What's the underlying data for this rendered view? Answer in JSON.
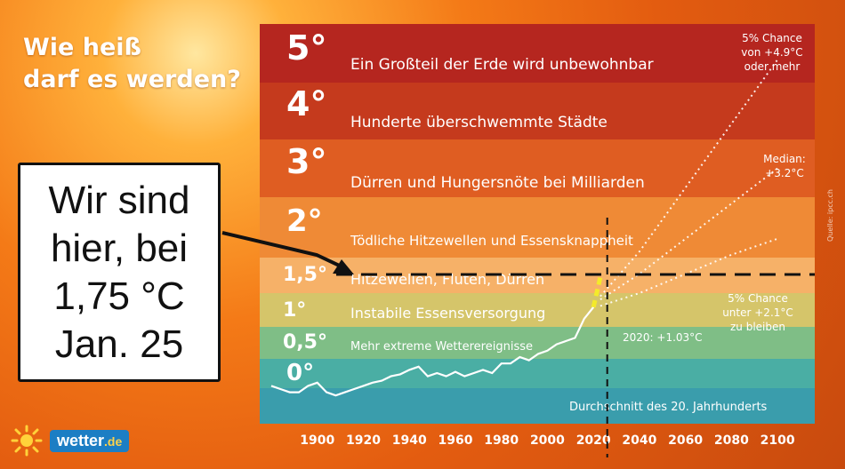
{
  "header": {
    "title_line1": "Wie heiß",
    "title_line2": "darf es werden?"
  },
  "callout": {
    "lines": [
      "Wir sind",
      "hier, bei",
      "1,75 °C",
      "Jan. 25"
    ]
  },
  "logo": {
    "name": "wetter",
    "suffix": ".de",
    "icon": "sun-icon"
  },
  "chart_data": {
    "type": "line",
    "bands": [
      {
        "label": "5°",
        "text": "Ein Großteil der Erde wird unbewohnbar",
        "color": "#b5261f"
      },
      {
        "label": "4°",
        "text": "Hunderte überschwemmte Städte",
        "color": "#c53a1d"
      },
      {
        "label": "3°",
        "text": "Dürren und Hungersnöte bei Milliarden",
        "color": "#df5d22"
      },
      {
        "label": "2°",
        "text": "Tödliche Hitzewellen und Essensknappheit",
        "color": "#ef8a36"
      },
      {
        "label": "1,5°",
        "text": "Hitzewellen, Fluten, Dürren",
        "color": "#f6b168"
      },
      {
        "label": "1°",
        "text": "Instabile Essensversorgung",
        "color": "#d5c56a"
      },
      {
        "label": "0,5°",
        "text": "Mehr extreme Wetterereignisse",
        "color": "#7fbe86"
      },
      {
        "label": "0°",
        "text": "",
        "color": "#4aaea4"
      },
      {
        "label": "",
        "text": "Durchschnitt des 20. Jahrhunderts",
        "color": "#3a9dac"
      }
    ],
    "x_ticks": [
      1900,
      1920,
      1940,
      1960,
      1980,
      2000,
      2020,
      2040,
      2060,
      2080,
      2100
    ],
    "xlim": [
      1880,
      2110
    ],
    "annotations": {
      "top_right": [
        "5% Chance",
        "von +4.9°C",
        "oder mehr"
      ],
      "median": [
        "Median:",
        "+3.2°C"
      ],
      "bottom_right": [
        "5% Chance",
        "unter +2.1°C",
        "zu bleiben"
      ],
      "year2020": "2020: +1.03°C",
      "source": "Quelle: ipcc.ch"
    },
    "series": [
      {
        "values_x": [
          1880,
          1884,
          1888,
          1892,
          1896,
          1900,
          1904,
          1908,
          1912,
          1916,
          1920,
          1924,
          1928,
          1932,
          1936,
          1940,
          1944,
          1948,
          1952,
          1956,
          1960,
          1964,
          1968,
          1972,
          1976,
          1980,
          1984,
          1988,
          1992,
          1996,
          2000,
          2004,
          2008,
          2012,
          2016,
          2020
        ],
        "values_y": [
          -0.2,
          -0.25,
          -0.3,
          -0.3,
          -0.2,
          -0.15,
          -0.3,
          -0.35,
          -0.3,
          -0.25,
          -0.2,
          -0.15,
          -0.12,
          -0.05,
          -0.02,
          0.05,
          0.1,
          -0.05,
          0.0,
          -0.05,
          0.02,
          -0.05,
          0.0,
          0.05,
          0.0,
          0.15,
          0.15,
          0.25,
          0.2,
          0.3,
          0.35,
          0.45,
          0.5,
          0.55,
          0.85,
          1.03
        ]
      },
      {
        "name": "scenario-high",
        "values_x": [
          2023,
          2040,
          2060,
          2080,
          2100
        ],
        "values_y": [
          1.2,
          1.9,
          2.9,
          3.9,
          4.9
        ]
      },
      {
        "name": "scenario-median",
        "values_x": [
          2023,
          2040,
          2060,
          2080,
          2100
        ],
        "values_y": [
          1.15,
          1.55,
          2.1,
          2.65,
          3.2
        ]
      },
      {
        "name": "scenario-low",
        "values_x": [
          2023,
          2040,
          2060,
          2080,
          2100
        ],
        "values_y": [
          1.05,
          1.25,
          1.55,
          1.85,
          2.1
        ]
      }
    ],
    "markers": {
      "vline_year": 2026,
      "hline_label": "1,5°",
      "hline_value": 1.5
    }
  }
}
